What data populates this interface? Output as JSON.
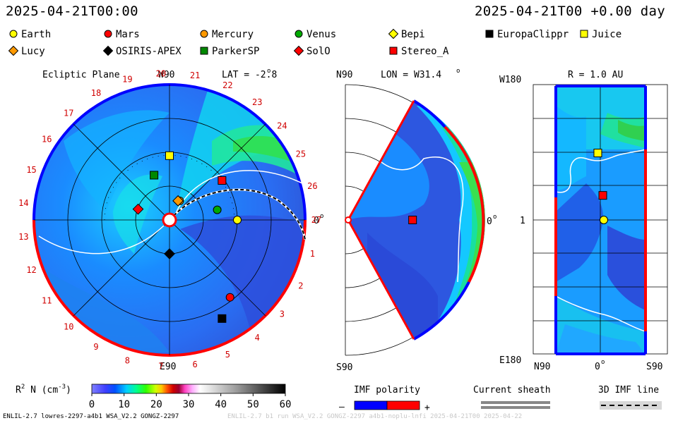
{
  "header": {
    "time_left": "2025-04-21T00:00",
    "time_right": "2025-04-21T00 +0.00 day"
  },
  "legend": {
    "row1": [
      {
        "label": "Earth",
        "shape": "circle",
        "color": "#ffff00"
      },
      {
        "label": "Mars",
        "shape": "circle",
        "color": "#ff0000"
      },
      {
        "label": "Mercury",
        "shape": "circle",
        "color": "#ff9900"
      },
      {
        "label": "Venus",
        "shape": "circle",
        "color": "#00aa00"
      },
      {
        "label": "Bepi",
        "shape": "diamond",
        "color": "#ffff00"
      },
      {
        "label": "EuropaClippr",
        "shape": "square",
        "color": "#000000"
      },
      {
        "label": "Juice",
        "shape": "square",
        "color": "#ffff00"
      }
    ],
    "row2": [
      {
        "label": "Lucy",
        "shape": "diamond",
        "color": "#ff9900"
      },
      {
        "label": "OSIRIS-APEX",
        "shape": "diamond",
        "color": "#000000"
      },
      {
        "label": "ParkerSP",
        "shape": "square",
        "color": "#008800"
      },
      {
        "label": "SolO",
        "shape": "diamond",
        "color": "#ff0000"
      },
      {
        "label": "Stereo_A",
        "shape": "square",
        "color": "#ff0000"
      }
    ]
  },
  "panels": {
    "ecliptic": {
      "title": "Ecliptic Plane",
      "top_label": "W90",
      "bottom_label": "E90",
      "right_label": "0",
      "lat_label": "LAT = -2.8",
      "carrington_ticks": [
        "1",
        "2",
        "3",
        "4",
        "5",
        "6",
        "7",
        "8",
        "9",
        "10",
        "11",
        "12",
        "13",
        "14",
        "15",
        "16",
        "17",
        "18",
        "19",
        "20",
        "21",
        "22",
        "23",
        "24",
        "25",
        "26",
        "27"
      ]
    },
    "meridional": {
      "lon_label": "LON = W31.4",
      "top_label": "N90",
      "bottom_label": "S90",
      "right_label": "0"
    },
    "sphere": {
      "r_label": "R = 1.0 AU",
      "top_left": "W180",
      "bottom_left": "E180",
      "mid_left": "1",
      "bottom_n": "N90",
      "bottom_0": "0",
      "bottom_s": "S90"
    }
  },
  "colorbar": {
    "label": "R",
    "label_sup": "2",
    "label_mid": " N (cm",
    "label_sup2": "-3",
    "label_end": ")",
    "ticks": [
      "0",
      "10",
      "20",
      "30",
      "40",
      "50",
      "60"
    ]
  },
  "imf": {
    "polarity_label": "IMF polarity",
    "minus": "–",
    "plus": "+",
    "sheath_label": "Current sheath",
    "line_label": "3D IMF line",
    "negative_color": "#0000ff",
    "positive_color": "#ff0000"
  },
  "footer": {
    "left": "ENLIL-2.7 lowres-2297-a4b1 WSA_V2.2 GONGZ-2297",
    "right": "ENLIL-2.7 b1 run WSA_V2.2 GONGZ-2297 a4b1-noplu-lnfi  2025-04-21T00 2025-04-22"
  },
  "chart_data": {
    "type": "heatmap",
    "quantity": "R^2 N (cm^-3)",
    "colorbar_range": [
      0,
      60
    ],
    "colorbar_ticks": [
      0,
      10,
      20,
      30,
      40,
      50,
      60
    ],
    "lat_deg": -2.8,
    "lon_deg": 31.4,
    "radius_au": 1.0,
    "ecliptic_objects": [
      {
        "name": "Earth",
        "r_au": 1.0,
        "angle_deg": 0
      },
      {
        "name": "Mars",
        "r_au": 1.45,
        "angle_deg": -52
      },
      {
        "name": "Mercury",
        "r_au": 0.32,
        "angle_deg": 62
      },
      {
        "name": "Venus",
        "r_au": 0.72,
        "angle_deg": 12
      },
      {
        "name": "Bepi",
        "r_au": 0.31,
        "angle_deg": 66
      },
      {
        "name": "EuropaClippr",
        "r_au": 1.65,
        "angle_deg": -62
      },
      {
        "name": "Juice",
        "r_au": 0.95,
        "angle_deg": 90
      },
      {
        "name": "Lucy",
        "r_au": 0.31,
        "angle_deg": 66
      },
      {
        "name": "OSIRIS-APEX",
        "r_au": 0.5,
        "angle_deg": -90
      },
      {
        "name": "ParkerSP",
        "r_au": 0.7,
        "angle_deg": 109
      },
      {
        "name": "SolO",
        "r_au": 0.49,
        "angle_deg": 161
      },
      {
        "name": "Stereo_A",
        "r_au": 0.97,
        "angle_deg": 37
      }
    ],
    "meridional_objects": [
      {
        "name": "Stereo_A",
        "r_au": 0.95,
        "lat_deg": 0
      }
    ],
    "sphere_objects": [
      {
        "name": "Juice",
        "lat_deg": 5,
        "lon_deg": 90
      },
      {
        "name": "Stereo_A",
        "lat_deg": -5,
        "lon_deg": 33
      },
      {
        "name": "Earth",
        "lat_deg": -7,
        "lon_deg": 0
      }
    ]
  }
}
